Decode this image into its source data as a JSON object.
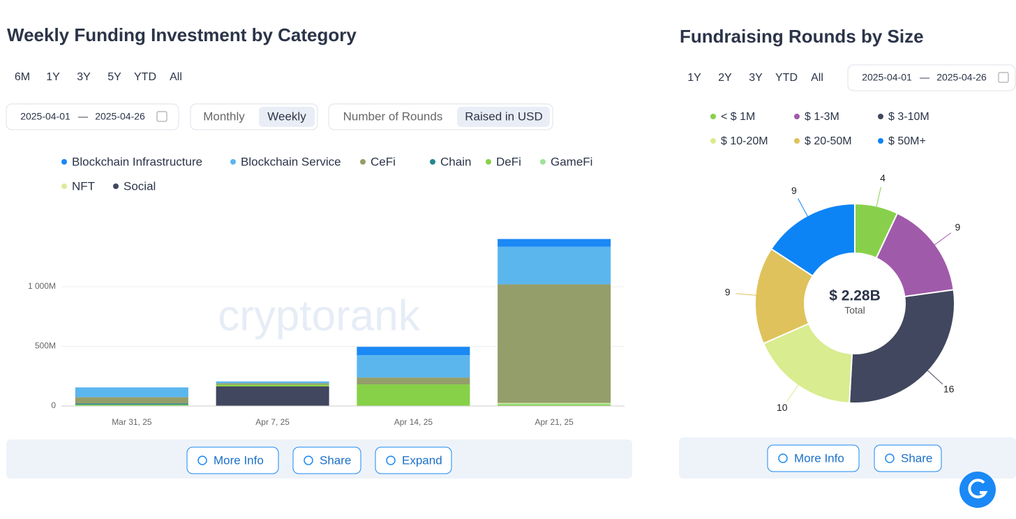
{
  "left": {
    "title": "Weekly Funding Investment by Category",
    "ranges": [
      "6M",
      "1Y",
      "3Y",
      "5Y",
      "YTD",
      "All"
    ],
    "date_from": "2025-04-01",
    "date_separator": "—",
    "date_to": "2025-04-26",
    "period": [
      "Monthly",
      "Weekly"
    ],
    "metric": [
      "Number of Rounds",
      "Raised in USD"
    ],
    "watermark": "cryptorank",
    "buttons": [
      "More Info",
      "Share",
      "Expand"
    ]
  },
  "right": {
    "title": "Fundraising Rounds by Size",
    "ranges": [
      "1Y",
      "2Y",
      "3Y",
      "YTD",
      "All"
    ],
    "date_from": "2025-04-01",
    "date_separator": "—",
    "date_to": "2025-04-26",
    "buttons": [
      "More Info",
      "Share"
    ]
  },
  "chart_data": [
    {
      "type": "bar",
      "stacked": true,
      "categories": [
        "Mar 31, 25",
        "Apr 7, 25",
        "Apr 14, 25",
        "Apr 21, 25"
      ],
      "ylim": [
        0,
        1500
      ],
      "yticks": [
        0,
        {
          "value": 500,
          "label": "500M"
        },
        {
          "value": 1000,
          "label": "1 000M"
        }
      ],
      "grid": true,
      "series": [
        {
          "name": "Blockchain Infrastructure",
          "color": "#1a88f5",
          "values": [
            0,
            0,
            70,
            64
          ]
        },
        {
          "name": "Blockchain Service",
          "color": "#5bb6ee",
          "values": [
            82,
            15,
            187,
            316
          ]
        },
        {
          "name": "CeFi",
          "color": "#949e6a",
          "values": [
            53,
            12,
            58,
            994
          ]
        },
        {
          "name": "Chain",
          "color": "#26878f",
          "values": [
            10,
            0,
            0,
            0
          ]
        },
        {
          "name": "DeFi",
          "color": "#86d147",
          "values": [
            8,
            15,
            181,
            10
          ]
        },
        {
          "name": "GameFi",
          "color": "#9fe39a",
          "values": [
            0,
            0,
            0,
            8
          ]
        },
        {
          "name": "NFT",
          "color": "#ddec98",
          "values": [
            0,
            0,
            0,
            5
          ]
        },
        {
          "name": "Social",
          "color": "#41475f",
          "values": [
            3,
            164,
            0,
            3
          ]
        }
      ]
    },
    {
      "type": "pie",
      "donut": true,
      "center_label": "$ 2.28B",
      "center_sublabel": "Total",
      "categories": [
        "< $ 1M",
        "$ 1-3M",
        "$ 3-10M",
        "$ 10-20M",
        "$ 20-50M",
        "$ 50M+"
      ],
      "values": [
        4,
        9,
        16,
        10,
        9,
        9
      ],
      "colors": [
        "#88d04b",
        "#a05aaa",
        "#41475e",
        "#d9ec8f",
        "#dfc25b",
        "#0d84f5"
      ]
    }
  ]
}
